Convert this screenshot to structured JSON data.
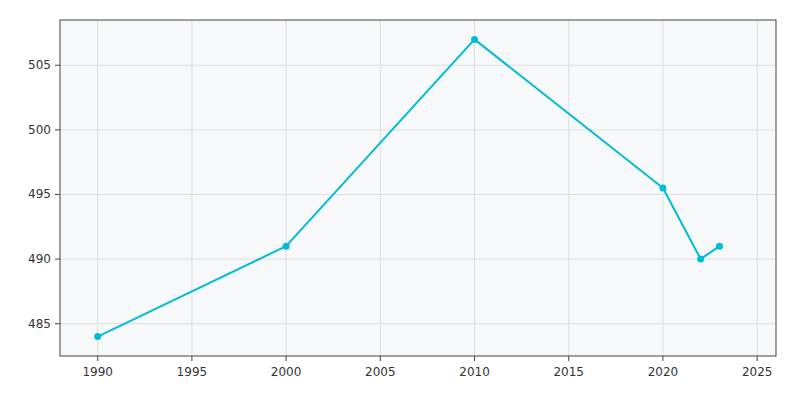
{
  "chart_data": {
    "type": "line",
    "x": [
      1990,
      2000,
      2010,
      2020,
      2022,
      2023
    ],
    "values": [
      484,
      491,
      507,
      495.5,
      490,
      491
    ],
    "color": "#00bcd4",
    "marker": "circle",
    "xlim": [
      1988,
      2026
    ],
    "ylim": [
      482.5,
      508.5
    ],
    "xticks": [
      1990,
      1995,
      2000,
      2005,
      2010,
      2015,
      2020,
      2025
    ],
    "yticks": [
      485,
      490,
      495,
      500,
      505
    ],
    "grid": true
  }
}
